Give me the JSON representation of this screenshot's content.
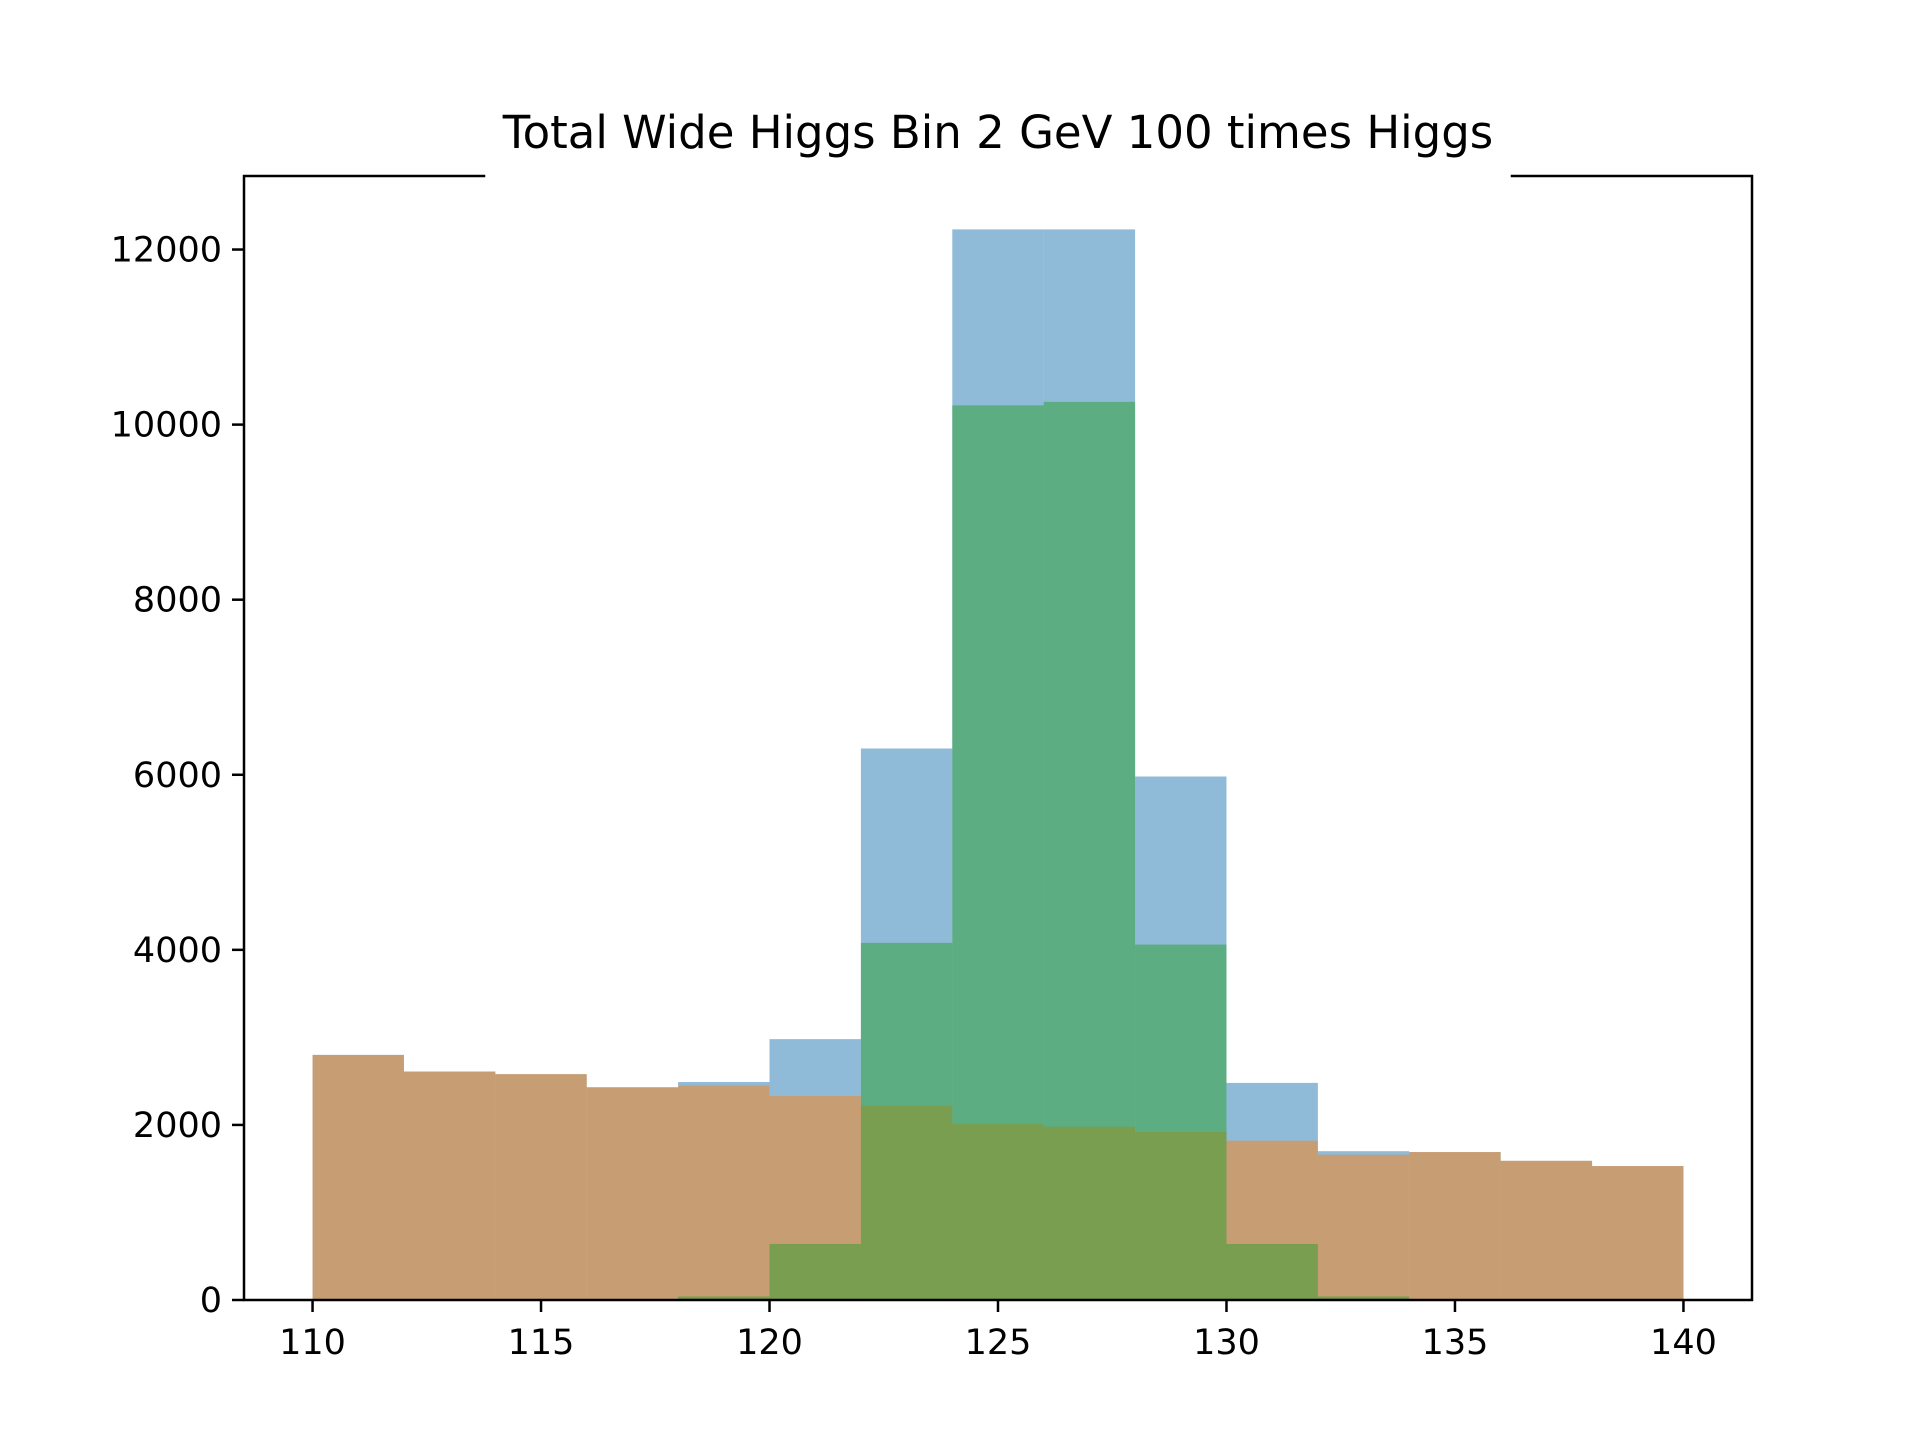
{
  "chart_data": {
    "type": "bar",
    "title": "Total Wide Higgs Bin 2 GeV 100 times Higgs",
    "xlabel": "",
    "ylabel": "",
    "xlim": [
      108.5,
      141.5
    ],
    "ylim": [
      0,
      12840
    ],
    "x_ticks": [
      110,
      115,
      120,
      125,
      130,
      135,
      140
    ],
    "x_tick_labels": [
      "110",
      "115",
      "120",
      "125",
      "130",
      "135",
      "140"
    ],
    "y_ticks": [
      0,
      2000,
      4000,
      6000,
      8000,
      10000,
      12000
    ],
    "y_tick_labels": [
      "0",
      "2000",
      "4000",
      "6000",
      "8000",
      "10000",
      "12000"
    ],
    "grid": false,
    "legend": "none",
    "bin_edges": [
      110,
      112,
      114,
      116,
      118,
      120,
      122,
      124,
      126,
      128,
      130,
      132,
      134,
      136,
      138,
      140
    ],
    "series": [
      {
        "color": "#1f77b4",
        "opacity": 0.5,
        "values": [
          2800,
          2610,
          2580,
          2430,
          2490,
          2980,
          6300,
          12230,
          12230,
          5980,
          2480,
          1700,
          1690,
          1590,
          1530
        ]
      },
      {
        "color": "#ff7f0e",
        "opacity": 0.5,
        "values": [
          2800,
          2610,
          2580,
          2430,
          2450,
          2330,
          2220,
          2010,
          1980,
          1920,
          1820,
          1660,
          1690,
          1590,
          1530
        ]
      },
      {
        "color": "#2ca02c",
        "opacity": 0.5,
        "values": [
          0,
          0,
          0,
          0,
          40,
          640,
          4080,
          10220,
          10260,
          4060,
          640,
          40,
          0,
          0,
          0
        ]
      }
    ]
  }
}
